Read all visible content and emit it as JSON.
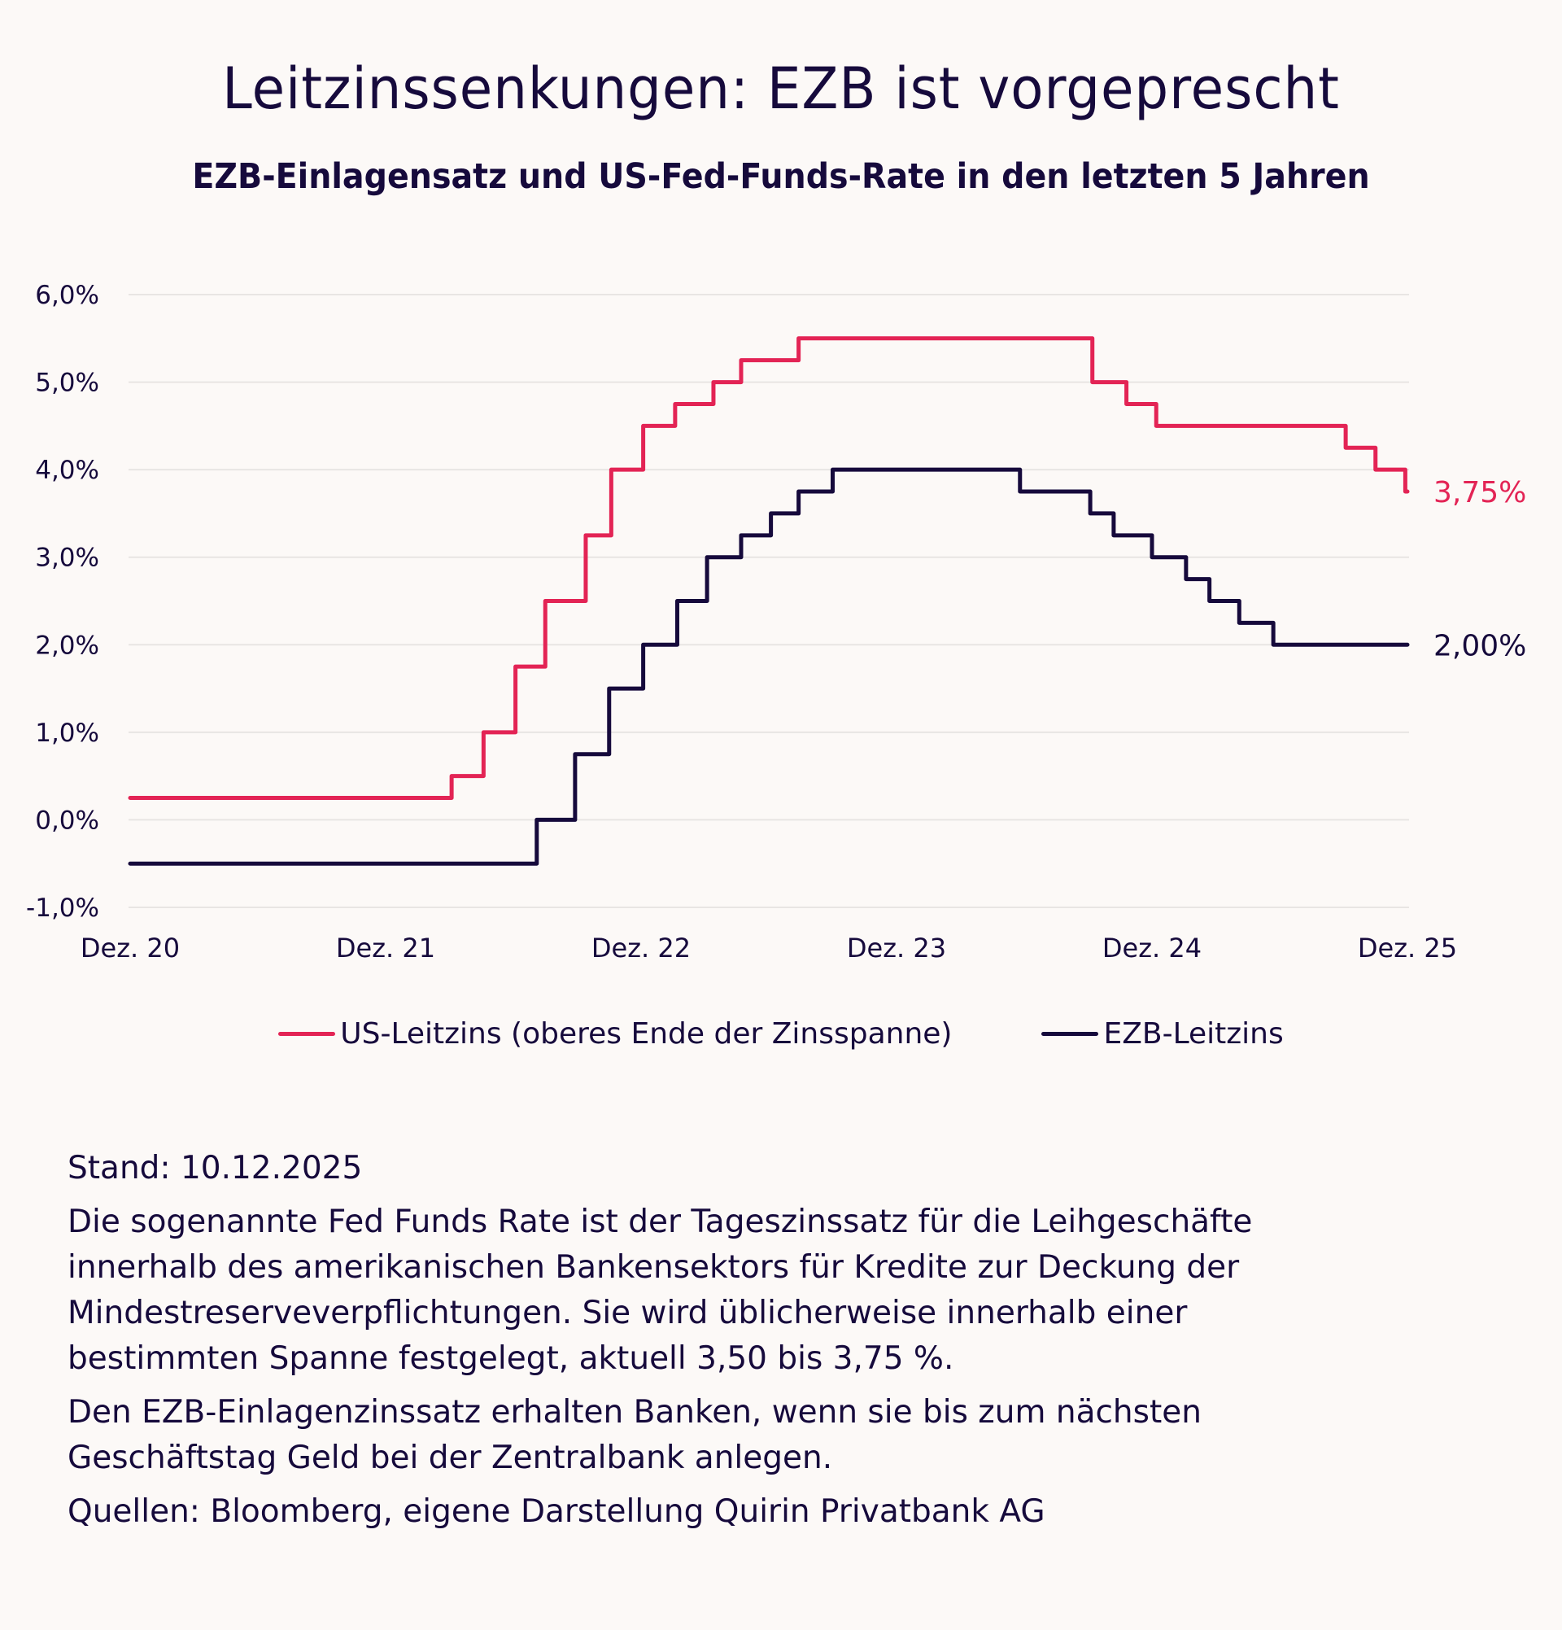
{
  "title": "Leitzinssenkungen: EZB ist vorgeprescht",
  "subtitle": "EZB-Einlagensatz und US-Fed-Funds-Rate in den letzten 5 Jahren",
  "colors": {
    "background": "#fcf9f7",
    "us": "#e32455",
    "ecb": "#160a3c",
    "grid": "#e8e5e3",
    "text": "#160a3c"
  },
  "chart_data": {
    "type": "line",
    "step": true,
    "title": "EZB-Einlagensatz und US-Fed-Funds-Rate in den letzten 5 Jahren",
    "xlabel": "",
    "ylabel": "",
    "x_unit": "months since Dez. 20",
    "xlim": [
      0,
      60
    ],
    "ylim": [
      -1.0,
      6.0
    ],
    "grid": true,
    "y_ticks": [
      {
        "value": 6,
        "label": "6,0%"
      },
      {
        "value": 5,
        "label": "5,0%"
      },
      {
        "value": 4,
        "label": "4,0%"
      },
      {
        "value": 3,
        "label": "3,0%"
      },
      {
        "value": 2,
        "label": "2,0%"
      },
      {
        "value": 1,
        "label": "1,0%"
      },
      {
        "value": 0,
        "label": "0,0%"
      },
      {
        "value": -1,
        "label": "-1,0%"
      }
    ],
    "x_ticks": [
      {
        "value": 0,
        "label": "Dez. 20"
      },
      {
        "value": 12,
        "label": "Dez. 21"
      },
      {
        "value": 24,
        "label": "Dez. 22"
      },
      {
        "value": 36,
        "label": "Dez. 23"
      },
      {
        "value": 48,
        "label": "Dez. 24"
      },
      {
        "value": 60,
        "label": "Dez. 25"
      }
    ],
    "legend_position": "bottom",
    "series": [
      {
        "name": "US-Leitzins (oberes Ende der Zinsspanne)",
        "color": "#e32455",
        "end_label": "3,75%",
        "points": [
          [
            0,
            0.25
          ],
          [
            15.1,
            0.5
          ],
          [
            16.6,
            1.0
          ],
          [
            18.1,
            1.75
          ],
          [
            19.5,
            2.5
          ],
          [
            21.4,
            3.25
          ],
          [
            22.6,
            4.0
          ],
          [
            24.1,
            4.5
          ],
          [
            25.6,
            4.75
          ],
          [
            27.4,
            5.0
          ],
          [
            28.7,
            5.25
          ],
          [
            31.4,
            5.5
          ],
          [
            45.2,
            5.0
          ],
          [
            46.8,
            4.75
          ],
          [
            48.2,
            4.5
          ],
          [
            57.1,
            4.25
          ],
          [
            58.5,
            4.0
          ],
          [
            59.9,
            3.75
          ],
          [
            60,
            3.75
          ]
        ]
      },
      {
        "name": "EZB-Leitzins",
        "color": "#160a3c",
        "end_label": "2,00%",
        "points": [
          [
            0,
            -0.5
          ],
          [
            19.1,
            0.0
          ],
          [
            20.9,
            0.75
          ],
          [
            22.5,
            1.5
          ],
          [
            24.1,
            2.0
          ],
          [
            25.7,
            2.5
          ],
          [
            27.1,
            3.0
          ],
          [
            28.7,
            3.25
          ],
          [
            30.1,
            3.5
          ],
          [
            31.4,
            3.75
          ],
          [
            33.0,
            4.0
          ],
          [
            41.8,
            3.75
          ],
          [
            45.1,
            3.5
          ],
          [
            46.2,
            3.25
          ],
          [
            48.0,
            3.0
          ],
          [
            49.6,
            2.75
          ],
          [
            50.7,
            2.5
          ],
          [
            52.1,
            2.25
          ],
          [
            53.7,
            2.0
          ],
          [
            60,
            2.0
          ]
        ]
      }
    ]
  },
  "notes": {
    "stand": "Stand: 10.12.2025",
    "paragraph1": "Die sogenannte Fed Funds Rate ist der Tageszinssatz für die Leihgeschäfte innerhalb des amerikanischen Bankensektors für Kredite zur Deckung der Mindestreserveverpflichtungen. Sie wird üblicherweise innerhalb einer bestimmten Spanne festgelegt, aktuell 3,50 bis 3,75 %.",
    "paragraph2": "Den EZB-Einlagenzinssatz erhalten Banken, wenn sie bis zum nächsten Geschäftstag Geld bei der Zentralbank anlegen.",
    "sources": "Quellen: Bloomberg, eigene Darstellung Quirin Privatbank AG"
  }
}
